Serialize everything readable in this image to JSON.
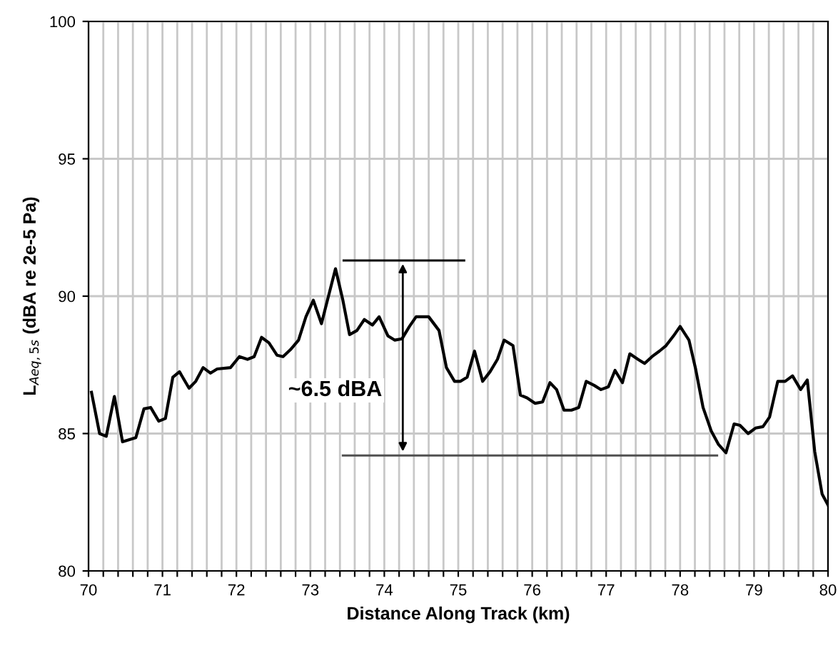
{
  "chart_data": {
    "type": "line",
    "xlabel": "Distance Along Track (km)",
    "ylabel": "L$_{Aeq,5s}$ (dBA re 2e-5 Pa)",
    "xlim": [
      70,
      80
    ],
    "ylim": [
      80,
      100
    ],
    "xticks": [
      70,
      {
        "value": 70.2,
        "label": null
      },
      {
        "value": 70.4,
        "label": null
      },
      {
        "value": 70.6,
        "label": null
      },
      {
        "value": 70.8,
        "label": null
      },
      71,
      {
        "value": 71.2,
        "label": null
      },
      {
        "value": 71.4,
        "label": null
      },
      {
        "value": 71.6,
        "label": null
      },
      {
        "value": 71.8,
        "label": null
      },
      72,
      {
        "value": 72.2,
        "label": null
      },
      {
        "value": 72.4,
        "label": null
      },
      {
        "value": 72.6,
        "label": null
      },
      {
        "value": 72.8,
        "label": null
      },
      73,
      {
        "value": 73.2,
        "label": null
      },
      {
        "value": 73.4,
        "label": null
      },
      {
        "value": 73.6,
        "label": null
      },
      {
        "value": 73.8,
        "label": null
      },
      74,
      {
        "value": 74.2,
        "label": null
      },
      {
        "value": 74.4,
        "label": null
      },
      {
        "value": 74.6,
        "label": null
      },
      {
        "value": 74.8,
        "label": null
      },
      75,
      {
        "value": 75.2,
        "label": null
      },
      {
        "value": 75.4,
        "label": null
      },
      {
        "value": 75.6,
        "label": null
      },
      {
        "value": 75.8,
        "label": null
      },
      76,
      {
        "value": 76.2,
        "label": null
      },
      {
        "value": 76.4,
        "label": null
      },
      {
        "value": 76.6,
        "label": null
      },
      {
        "value": 76.8,
        "label": null
      },
      77,
      {
        "value": 77.2,
        "label": null
      },
      {
        "value": 77.4,
        "label": null
      },
      {
        "value": 77.6,
        "label": null
      },
      {
        "value": 77.8,
        "label": null
      },
      78,
      {
        "value": 78.2,
        "label": null
      },
      {
        "value": 78.4,
        "label": null
      },
      {
        "value": 78.6,
        "label": null
      },
      {
        "value": 78.8,
        "label": null
      },
      79,
      {
        "value": 79.2,
        "label": null
      },
      {
        "value": 79.4,
        "label": null
      },
      {
        "value": 79.6,
        "label": null
      },
      {
        "value": 79.8,
        "label": null
      },
      80
    ],
    "yticks": [
      80,
      85,
      90,
      95,
      100
    ],
    "grid": true,
    "marker": "none",
    "line_style": "solid",
    "annotations": [
      "~6.5 dBA"
    ],
    "series": [
      {
        "color": "#000000",
        "x": [
          73.45,
          75.08
        ],
        "values": [
          91.3,
          91.3
        ]
      },
      {
        "color": "#505050",
        "x": [
          73.44,
          78.5
        ],
        "values": [
          84.2,
          84.2
        ]
      },
      {
        "color": "#000000",
        "x": [
          70.04,
          70.15,
          70.24,
          70.35,
          70.46,
          70.64,
          70.75,
          70.84,
          70.95,
          71.04,
          71.14,
          71.23,
          71.36,
          71.45,
          71.55,
          71.65,
          71.74,
          71.92,
          72.04,
          72.15,
          72.24,
          72.34,
          72.44,
          72.55,
          72.63,
          72.73,
          72.84,
          72.94,
          73.04,
          73.15,
          73.34,
          73.44,
          73.53,
          73.63,
          73.73,
          73.84,
          73.93,
          74.05,
          74.14,
          74.24,
          74.34,
          74.43,
          74.6,
          74.74,
          74.84,
          74.95,
          75.03,
          75.12,
          75.22,
          75.33,
          75.43,
          75.53,
          75.62,
          75.74,
          75.84,
          75.93,
          76.04,
          76.14,
          76.24,
          76.33,
          76.43,
          76.53,
          76.63,
          76.73,
          76.84,
          76.93,
          77.03,
          77.12,
          77.22,
          77.32,
          77.43,
          77.52,
          77.62,
          77.72,
          77.81,
          77.91,
          78.0,
          78.12,
          78.21,
          78.31,
          78.42,
          78.52,
          78.62,
          78.73,
          78.81,
          78.92,
          79.02,
          79.12,
          79.21,
          79.32,
          79.42,
          79.52,
          79.63,
          79.72,
          79.82,
          79.92,
          80.0
        ],
        "values": [
          86.5,
          85.0,
          84.9,
          86.35,
          84.7,
          84.85,
          85.9,
          85.95,
          85.45,
          85.55,
          87.05,
          87.25,
          86.65,
          86.9,
          87.4,
          87.2,
          87.35,
          87.4,
          87.8,
          87.7,
          87.8,
          88.5,
          88.3,
          87.85,
          87.8,
          88.05,
          88.4,
          89.25,
          89.85,
          89.0,
          91.0,
          89.85,
          88.6,
          88.75,
          89.15,
          88.95,
          89.25,
          88.55,
          88.4,
          88.45,
          88.9,
          89.25,
          89.25,
          88.75,
          87.4,
          86.9,
          86.9,
          87.05,
          88.0,
          86.9,
          87.25,
          87.7,
          88.4,
          88.2,
          86.4,
          86.3,
          86.1,
          86.15,
          86.85,
          86.6,
          85.85,
          85.85,
          85.95,
          86.9,
          86.75,
          86.6,
          86.7,
          87.3,
          86.85,
          87.9,
          87.7,
          87.55,
          87.8,
          88.0,
          88.2,
          88.55,
          88.9,
          88.4,
          87.35,
          85.95,
          85.1,
          84.6,
          84.3,
          85.35,
          85.3,
          85.0,
          85.2,
          85.25,
          85.6,
          86.9,
          86.9,
          87.1,
          86.6,
          86.95,
          84.35,
          82.8,
          82.4
        ]
      }
    ]
  }
}
